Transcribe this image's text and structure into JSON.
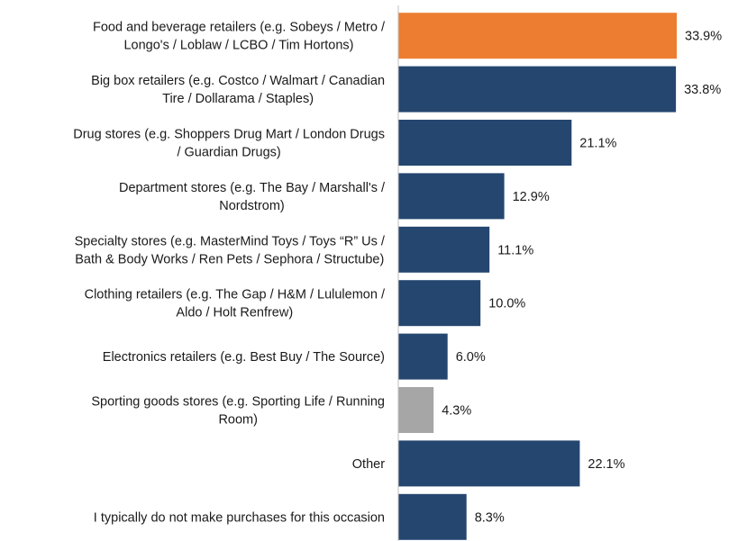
{
  "chart_data": {
    "type": "bar",
    "orientation": "horizontal",
    "categories": [
      [
        "Food and beverage retailers (e.g. Sobeys / Metro /",
        "Longo's / Loblaw / LCBO / Tim Hortons)"
      ],
      [
        "Big box retailers (e.g. Costco / Walmart / Canadian",
        "Tire / Dollarama / Staples)"
      ],
      [
        "Drug stores (e.g. Shoppers Drug Mart / London Drugs",
        "/ Guardian Drugs)"
      ],
      [
        "Department stores (e.g. The Bay / Marshall's /",
        "Nordstrom)"
      ],
      [
        "Specialty stores (e.g. MasterMind Toys / Toys “R” Us /",
        "Bath & Body Works / Ren Pets / Sephora / Structube)"
      ],
      [
        "Clothing retailers (e.g. The Gap / H&M / Lululemon /",
        "Aldo / Holt Renfrew)"
      ],
      [
        "Electronics retailers (e.g. Best Buy / The Source)"
      ],
      [
        "Sporting goods stores (e.g. Sporting Life / Running",
        "Room)"
      ],
      [
        "Other"
      ],
      [
        "I typically do not make purchases for this occasion"
      ]
    ],
    "values": [
      33.9,
      33.8,
      21.1,
      12.9,
      11.1,
      10.0,
      6.0,
      4.3,
      22.1,
      8.3
    ],
    "value_labels": [
      "33.9%",
      "33.8%",
      "21.1%",
      "12.9%",
      "11.1%",
      "10.0%",
      "6.0%",
      "4.3%",
      "22.1%",
      "8.3%"
    ],
    "bar_colors": [
      "#ED7D31",
      "#24466F",
      "#24466F",
      "#24466F",
      "#24466F",
      "#24466F",
      "#24466F",
      "#A6A6A6",
      "#24466F",
      "#24466F"
    ],
    "title": "",
    "xlabel": "",
    "ylabel": "",
    "xlim": [
      0,
      33.9
    ],
    "grid": false,
    "legend": "none"
  }
}
